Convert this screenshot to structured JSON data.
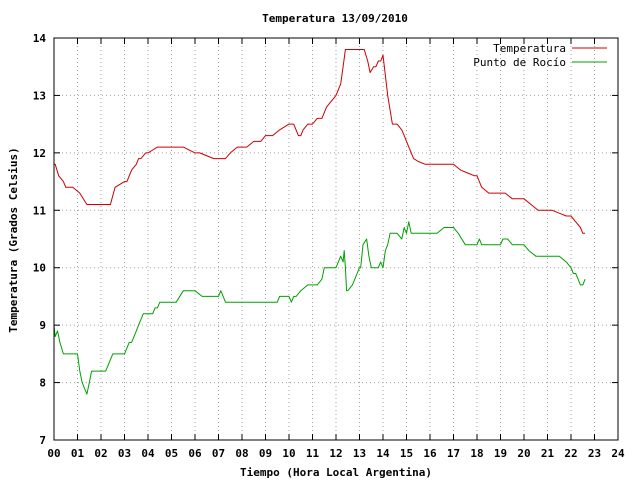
{
  "chart_data": {
    "type": "line",
    "title": "Temperatura 13/09/2010",
    "xlabel": "Tiempo (Hora Local Argentina)",
    "ylabel": "Temperatura (Grados Celsius)",
    "xlim": [
      0,
      24
    ],
    "ylim": [
      7,
      14
    ],
    "xticks": [
      "00",
      "01",
      "02",
      "03",
      "04",
      "05",
      "06",
      "07",
      "08",
      "09",
      "10",
      "11",
      "12",
      "13",
      "14",
      "15",
      "16",
      "17",
      "18",
      "19",
      "20",
      "21",
      "22",
      "23",
      "24"
    ],
    "yticks": [
      "7",
      "8",
      "9",
      "10",
      "11",
      "12",
      "13",
      "14"
    ],
    "grid": true,
    "legend_position": "top-right",
    "series": [
      {
        "name": "Temperatura",
        "color": "#cc0000",
        "x": [
          0,
          0.05,
          0.2,
          0.4,
          0.5,
          0.8,
          1.1,
          1.4,
          1.5,
          1.6,
          2.0,
          2.4,
          2.6,
          2.8,
          3.0,
          3.1,
          3.3,
          3.5,
          3.6,
          3.7,
          3.9,
          4.0,
          4.2,
          4.4,
          4.5,
          4.8,
          5.0,
          5.5,
          6.0,
          6.2,
          6.8,
          7.0,
          7.1,
          7.3,
          7.5,
          7.8,
          8.0,
          8.2,
          8.5,
          8.8,
          9.0,
          9.3,
          9.6,
          10.0,
          10.2,
          10.3,
          10.4,
          10.5,
          10.6,
          10.8,
          11.0,
          11.2,
          11.4,
          11.6,
          11.8,
          12.0,
          12.2,
          12.3,
          12.4,
          12.6,
          12.9,
          13.2,
          13.35,
          13.45,
          13.6,
          13.7,
          13.8,
          13.9,
          14.0,
          14.2,
          14.4,
          14.6,
          14.8,
          14.9,
          15.0,
          15.1,
          15.3,
          15.5,
          15.8,
          16.0,
          16.3,
          16.6,
          16.8,
          17.0,
          17.3,
          17.6,
          17.9,
          18.0,
          18.2,
          18.5,
          18.8,
          19.0,
          19.2,
          19.5,
          19.8,
          20.0,
          20.3,
          20.6,
          20.9,
          21.0,
          21.2,
          21.5,
          21.8,
          22.0,
          22.2,
          22.4,
          22.5,
          22.6
        ],
        "y": [
          11.8,
          11.8,
          11.6,
          11.5,
          11.4,
          11.4,
          11.3,
          11.1,
          11.1,
          11.1,
          11.1,
          11.1,
          11.4,
          11.45,
          11.5,
          11.5,
          11.7,
          11.8,
          11.9,
          11.9,
          12.0,
          12.0,
          12.05,
          12.1,
          12.1,
          12.1,
          12.1,
          12.1,
          12.0,
          12.0,
          11.9,
          11.9,
          11.9,
          11.9,
          12.0,
          12.1,
          12.1,
          12.1,
          12.2,
          12.2,
          12.3,
          12.3,
          12.4,
          12.5,
          12.5,
          12.4,
          12.3,
          12.3,
          12.4,
          12.5,
          12.5,
          12.6,
          12.6,
          12.8,
          12.9,
          13.0,
          13.2,
          13.5,
          13.8,
          13.8,
          13.8,
          13.8,
          13.6,
          13.4,
          13.5,
          13.5,
          13.6,
          13.6,
          13.7,
          13.0,
          12.5,
          12.5,
          12.4,
          12.3,
          12.2,
          12.1,
          11.9,
          11.85,
          11.8,
          11.8,
          11.8,
          11.8,
          11.8,
          11.8,
          11.7,
          11.65,
          11.6,
          11.6,
          11.4,
          11.3,
          11.3,
          11.3,
          11.3,
          11.2,
          11.2,
          11.2,
          11.1,
          11.0,
          11.0,
          11.0,
          11.0,
          10.95,
          10.9,
          10.9,
          10.8,
          10.7,
          10.6,
          10.6
        ]
      },
      {
        "name": "Punto de Rocío",
        "color": "#00a000",
        "x": [
          0,
          0.05,
          0.15,
          0.25,
          0.4,
          0.7,
          1.0,
          1.1,
          1.2,
          1.3,
          1.4,
          1.5,
          1.6,
          1.8,
          2.0,
          2.2,
          2.5,
          2.8,
          3.0,
          3.2,
          3.3,
          3.5,
          3.6,
          3.8,
          4.0,
          4.2,
          4.3,
          4.4,
          4.5,
          4.6,
          4.8,
          5.0,
          5.2,
          5.5,
          5.8,
          6.0,
          6.3,
          6.6,
          6.9,
          7.0,
          7.1,
          7.2,
          7.3,
          7.6,
          8.0,
          8.5,
          9.0,
          9.5,
          9.6,
          10.0,
          10.1,
          10.2,
          10.3,
          10.5,
          10.8,
          11.0,
          11.2,
          11.4,
          11.5,
          11.7,
          12.0,
          12.2,
          12.3,
          12.35,
          12.4,
          12.45,
          12.5,
          12.7,
          12.8,
          12.9,
          13.0,
          13.05,
          13.15,
          13.3,
          13.4,
          13.45,
          13.5,
          13.7,
          13.8,
          13.9,
          14.0,
          14.1,
          14.2,
          14.3,
          14.4,
          14.6,
          14.8,
          14.9,
          15.0,
          15.1,
          15.2,
          15.5,
          15.8,
          16.0,
          16.3,
          16.6,
          16.9,
          17.0,
          17.2,
          17.5,
          17.8,
          18.0,
          18.1,
          18.2,
          18.3,
          18.5,
          18.8,
          19.0,
          19.1,
          19.3,
          19.5,
          19.7,
          20.0,
          20.2,
          20.5,
          20.8,
          21.0,
          21.2,
          21.5,
          21.8,
          22.0,
          22.1,
          22.2,
          22.3,
          22.4,
          22.5,
          22.6
        ],
        "y": [
          9.0,
          8.8,
          8.9,
          8.7,
          8.5,
          8.5,
          8.5,
          8.2,
          8.0,
          7.9,
          7.8,
          8.0,
          8.2,
          8.2,
          8.2,
          8.2,
          8.5,
          8.5,
          8.5,
          8.7,
          8.7,
          8.9,
          9.0,
          9.2,
          9.2,
          9.2,
          9.3,
          9.3,
          9.4,
          9.4,
          9.4,
          9.4,
          9.4,
          9.6,
          9.6,
          9.6,
          9.5,
          9.5,
          9.5,
          9.5,
          9.6,
          9.5,
          9.4,
          9.4,
          9.4,
          9.4,
          9.4,
          9.4,
          9.5,
          9.5,
          9.4,
          9.5,
          9.5,
          9.6,
          9.7,
          9.7,
          9.7,
          9.8,
          10.0,
          10.0,
          10.0,
          10.2,
          10.1,
          10.3,
          10.0,
          9.6,
          9.6,
          9.7,
          9.8,
          9.9,
          10.0,
          10.0,
          10.4,
          10.5,
          10.2,
          10.1,
          10.0,
          10.0,
          10.0,
          10.1,
          10.0,
          10.3,
          10.4,
          10.6,
          10.6,
          10.6,
          10.5,
          10.7,
          10.6,
          10.8,
          10.6,
          10.6,
          10.6,
          10.6,
          10.6,
          10.7,
          10.7,
          10.7,
          10.6,
          10.4,
          10.4,
          10.4,
          10.5,
          10.4,
          10.4,
          10.4,
          10.4,
          10.4,
          10.5,
          10.5,
          10.4,
          10.4,
          10.4,
          10.3,
          10.2,
          10.2,
          10.2,
          10.2,
          10.2,
          10.1,
          10.0,
          9.9,
          9.9,
          9.8,
          9.7,
          9.7,
          9.8
        ]
      }
    ]
  }
}
